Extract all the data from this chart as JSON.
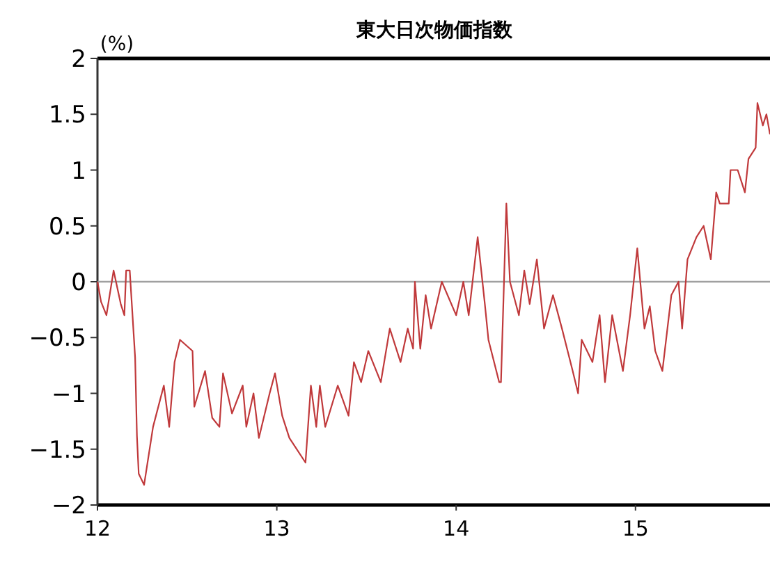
{
  "chart_data": {
    "type": "line",
    "title": "東大日次物価指数",
    "ylabel": "(%)",
    "x": [
      12.0,
      12.02,
      12.05,
      12.09,
      12.13,
      12.15,
      12.16,
      12.18,
      12.21,
      12.22,
      12.23,
      12.26,
      12.31,
      12.37,
      12.4,
      12.43,
      12.46,
      12.53,
      12.54,
      12.6,
      12.64,
      12.68,
      12.7,
      12.75,
      12.81,
      12.83,
      12.87,
      12.9,
      12.96,
      12.99,
      13.03,
      13.07,
      13.16,
      13.19,
      13.22,
      13.24,
      13.27,
      13.34,
      13.4,
      13.43,
      13.47,
      13.51,
      13.58,
      13.63,
      13.69,
      13.73,
      13.76,
      13.77,
      13.8,
      13.83,
      13.86,
      13.92,
      14.0,
      14.04,
      14.07,
      14.12,
      14.16,
      14.18,
      14.24,
      14.25,
      14.28,
      14.3,
      14.35,
      14.38,
      14.41,
      14.45,
      14.49,
      14.54,
      14.59,
      14.65,
      14.68,
      14.7,
      14.76,
      14.8,
      14.83,
      14.87,
      14.93,
      14.97,
      15.01,
      15.05,
      15.08,
      15.11,
      15.15,
      15.2,
      15.24,
      15.26,
      15.29,
      15.34,
      15.38,
      15.42,
      15.45,
      15.47,
      15.52,
      15.53,
      15.57,
      15.61,
      15.63,
      15.67,
      15.68,
      15.71,
      15.73,
      15.75
    ],
    "series": [
      {
        "color": "#c0393b",
        "values": [
          0,
          -0.18,
          -0.3,
          0.1,
          -0.2,
          -0.3,
          0.1,
          0.1,
          -0.68,
          -1.38,
          -1.72,
          -1.82,
          -1.3,
          -0.93,
          -1.3,
          -0.72,
          -0.52,
          -0.62,
          -1.12,
          -0.8,
          -1.22,
          -1.3,
          -0.82,
          -1.18,
          -0.93,
          -1.3,
          -1.0,
          -1.4,
          -1.0,
          -0.82,
          -1.2,
          -1.4,
          -1.62,
          -0.93,
          -1.3,
          -0.93,
          -1.3,
          -0.93,
          -1.2,
          -0.72,
          -0.9,
          -0.62,
          -0.9,
          -0.42,
          -0.72,
          -0.42,
          -0.6,
          0,
          -0.6,
          -0.12,
          -0.42,
          0,
          -0.3,
          0,
          -0.3,
          0.4,
          -0.2,
          -0.52,
          -0.9,
          -0.9,
          0.7,
          0,
          -0.3,
          0.1,
          -0.2,
          0.2,
          -0.42,
          -0.12,
          -0.42,
          -0.8,
          -1.0,
          -0.52,
          -0.72,
          -0.3,
          -0.9,
          -0.3,
          -0.8,
          -0.3,
          0.3,
          -0.42,
          -0.22,
          -0.62,
          -0.8,
          -0.12,
          0,
          -0.42,
          0.2,
          0.4,
          0.5,
          0.2,
          0.8,
          0.7,
          0.7,
          1.0,
          1.0,
          0.8,
          1.1,
          1.2,
          1.6,
          1.4,
          1.5,
          1.32
        ]
      }
    ],
    "xlim": [
      12,
      15.75
    ],
    "ylim": [
      -2,
      2
    ],
    "xticks": [
      12,
      13,
      14,
      15
    ],
    "yticks": [
      -2,
      -1.5,
      -1,
      -0.5,
      0,
      0.5,
      1,
      1.5,
      2
    ],
    "ref_lines": [
      {
        "axis": "y",
        "value": 0,
        "color": "#a0a0a0"
      }
    ]
  }
}
